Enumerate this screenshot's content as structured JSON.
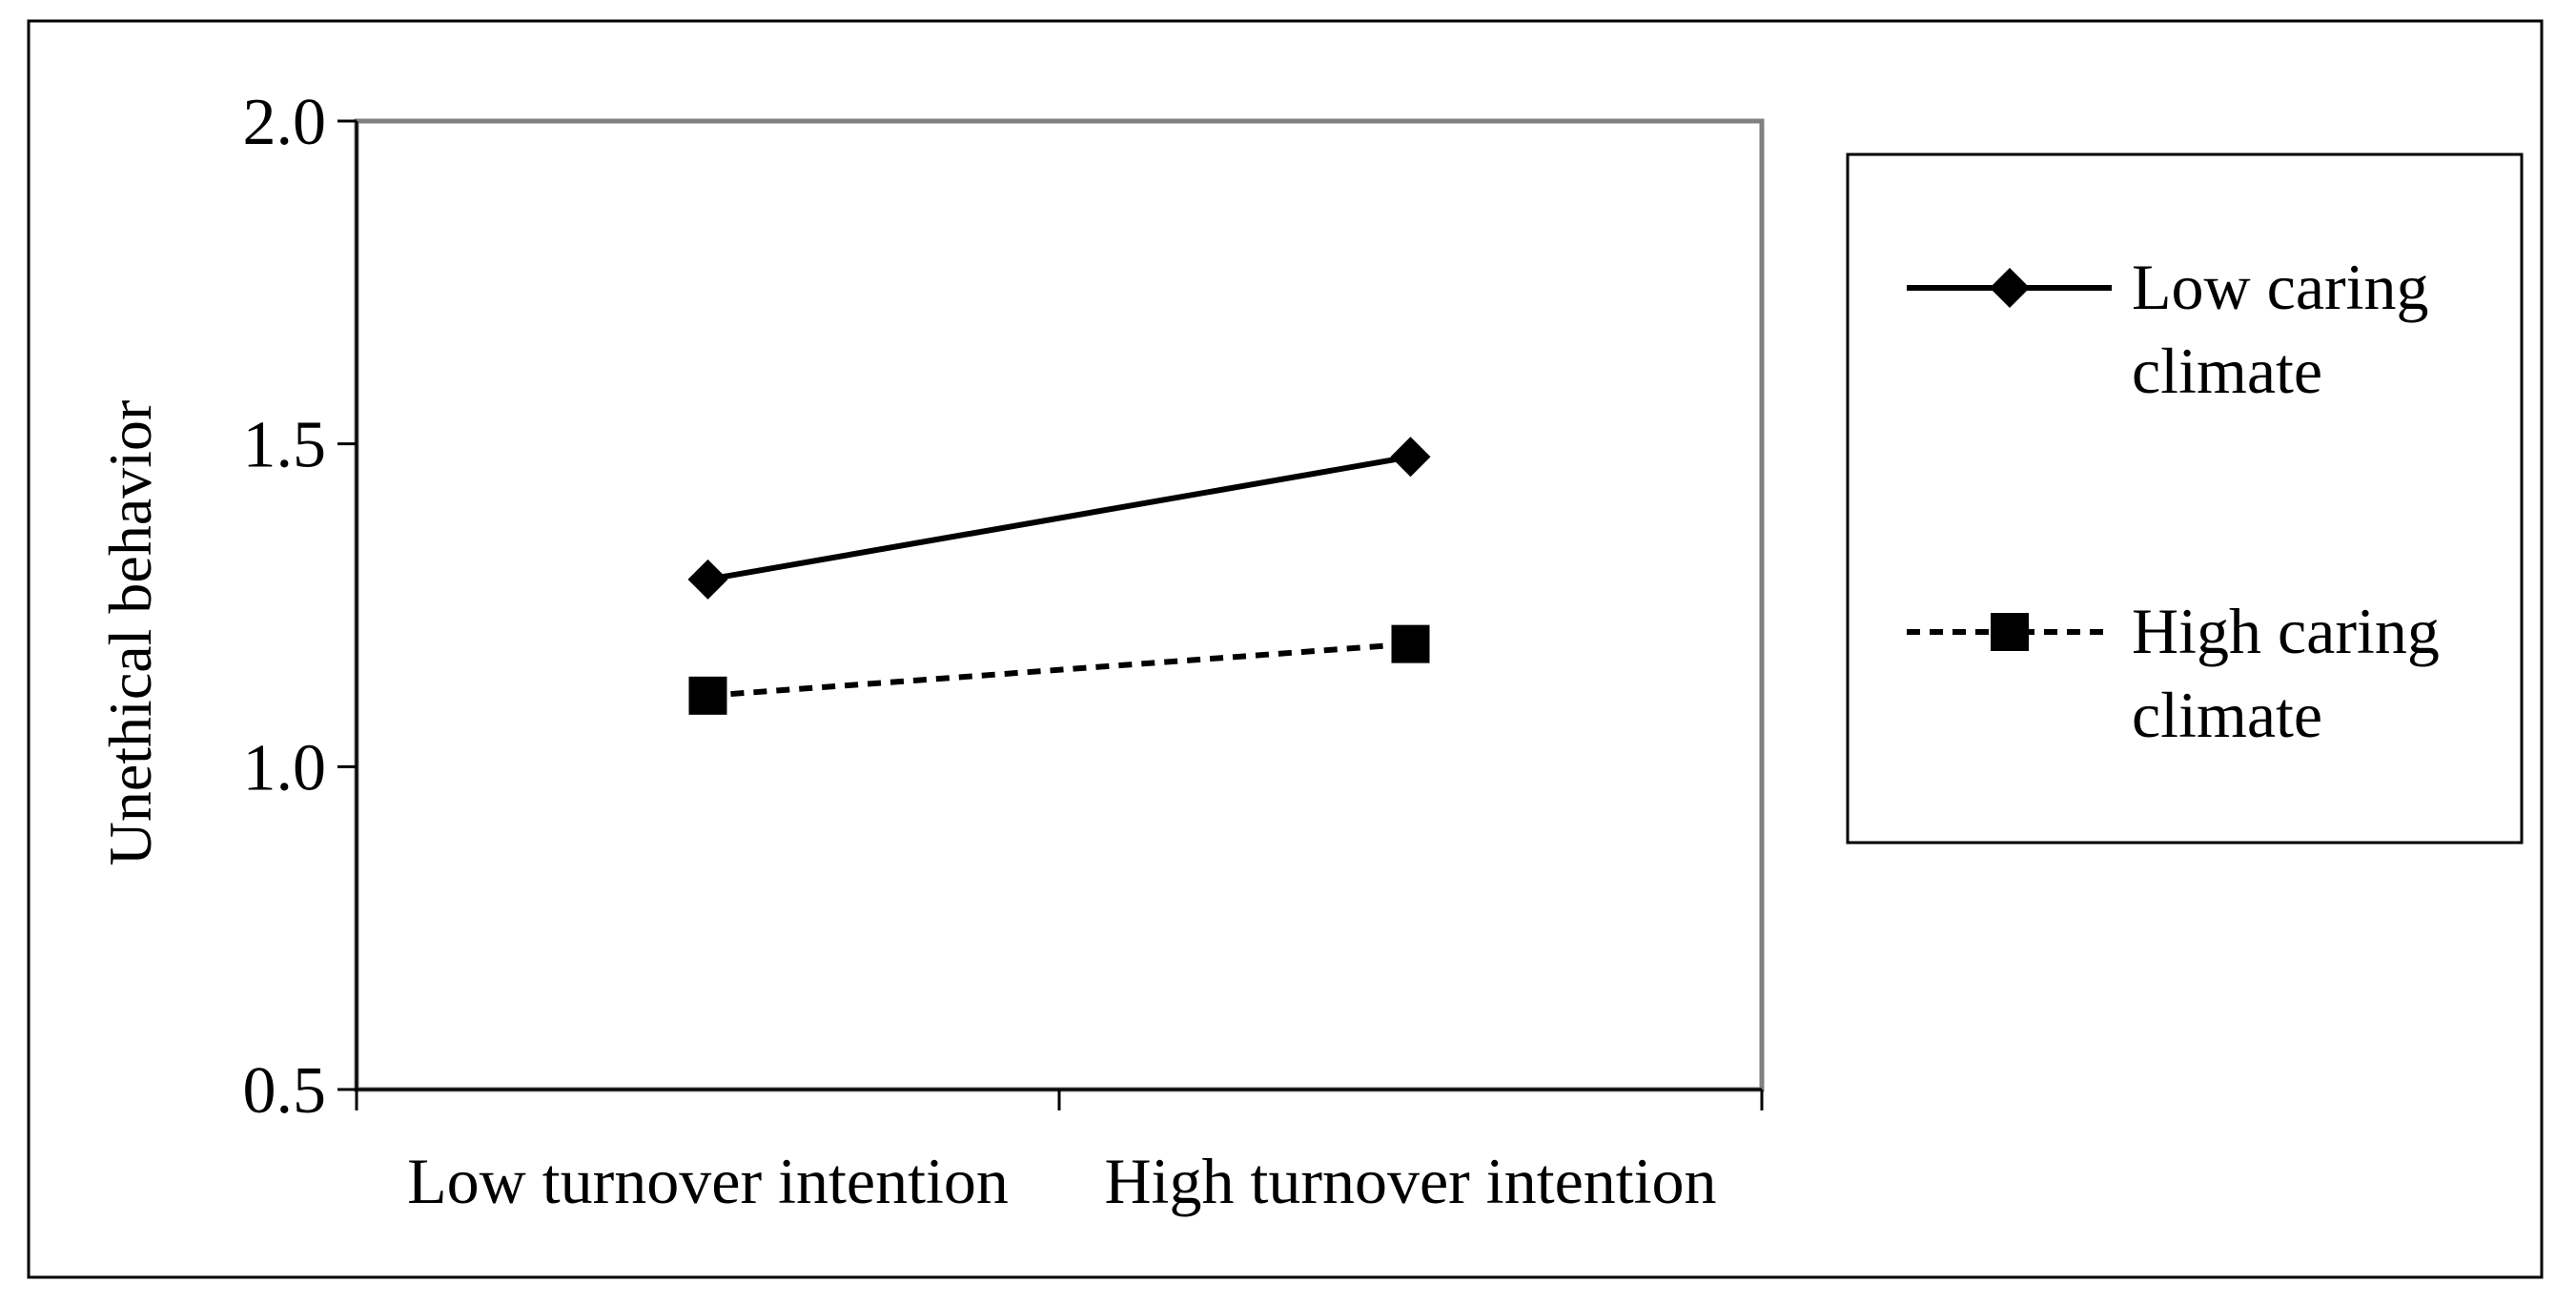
{
  "chart_data": {
    "type": "line",
    "ylabel": "Unethical behavior",
    "xlabel": "",
    "categories": [
      "Low turnover intention",
      "High turnover intention"
    ],
    "ylim": [
      0.5,
      2.0
    ],
    "yticks": [
      "0.5",
      "1.0",
      "1.5",
      "2.0"
    ],
    "ytick_values": [
      0.5,
      1.0,
      1.5,
      2.0
    ],
    "grid": false,
    "legend_position": "right",
    "series": [
      {
        "name": "Low caring climate",
        "name_lines": [
          "Low caring",
          "climate"
        ],
        "values": [
          1.29,
          1.48
        ],
        "line_style": "solid",
        "marker": "diamond",
        "color": "#000000"
      },
      {
        "name": "High caring climate",
        "name_lines": [
          "High caring",
          "climate"
        ],
        "values": [
          1.11,
          1.19
        ],
        "line_style": "dashed",
        "marker": "square",
        "color": "#000000"
      }
    ]
  }
}
